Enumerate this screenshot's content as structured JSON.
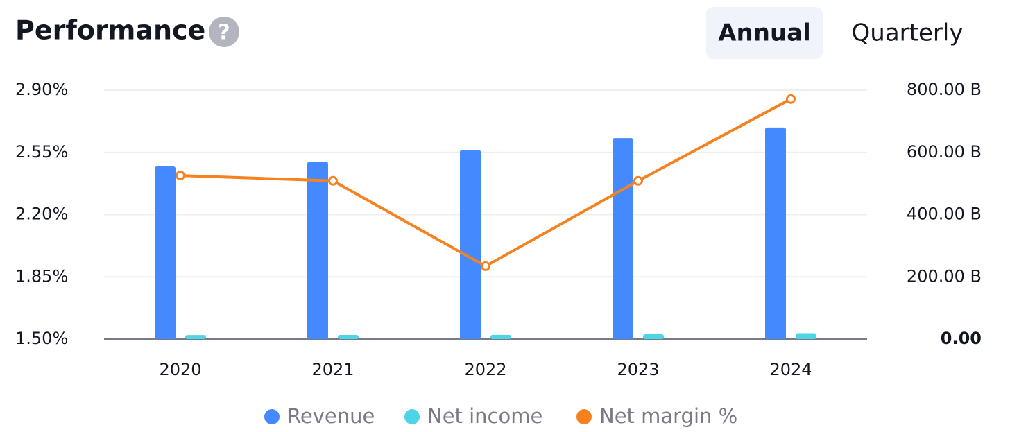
{
  "help": "?",
  "controls": [
    "Annual",
    "Quarterly"
  ],
  "chart_data": {
    "type": "combo",
    "title": "Performance",
    "categories": [
      "2020",
      "2021",
      "2022",
      "2023",
      "2024"
    ],
    "series": [
      {
        "name": "Revenue",
        "type": "bar",
        "axis": "y2",
        "color": "#4589ff",
        "values": [
          555,
          570,
          608,
          646,
          680
        ]
      },
      {
        "name": "Net income",
        "type": "bar",
        "axis": "y2",
        "color": "#4dd4e6",
        "values": [
          13,
          13.5,
          13.7,
          15.5,
          19
        ]
      },
      {
        "name": "Net margin %",
        "type": "line",
        "axis": "y",
        "color": "#f5821f",
        "values": [
          2.42,
          2.39,
          1.91,
          2.39,
          2.85
        ]
      }
    ],
    "ylim": [
      1.5,
      2.9
    ],
    "yticks": [
      {
        "value": 1.5,
        "label": "1.50%"
      },
      {
        "value": 1.85,
        "label": "1.85%"
      },
      {
        "value": 2.2,
        "label": "2.20%"
      },
      {
        "value": 2.55,
        "label": "2.55%"
      },
      {
        "value": 2.9,
        "label": "2.90%"
      }
    ],
    "y2lim": [
      0,
      800
    ],
    "y2ticks": [
      {
        "value": 0,
        "label": "0.00"
      },
      {
        "value": 200,
        "label": "200.00 B"
      },
      {
        "value": 400,
        "label": "400.00 B"
      },
      {
        "value": 600,
        "label": "600.00 B"
      },
      {
        "value": 800,
        "label": "800.00 B"
      }
    ],
    "grid": true,
    "legend": "bottom"
  }
}
